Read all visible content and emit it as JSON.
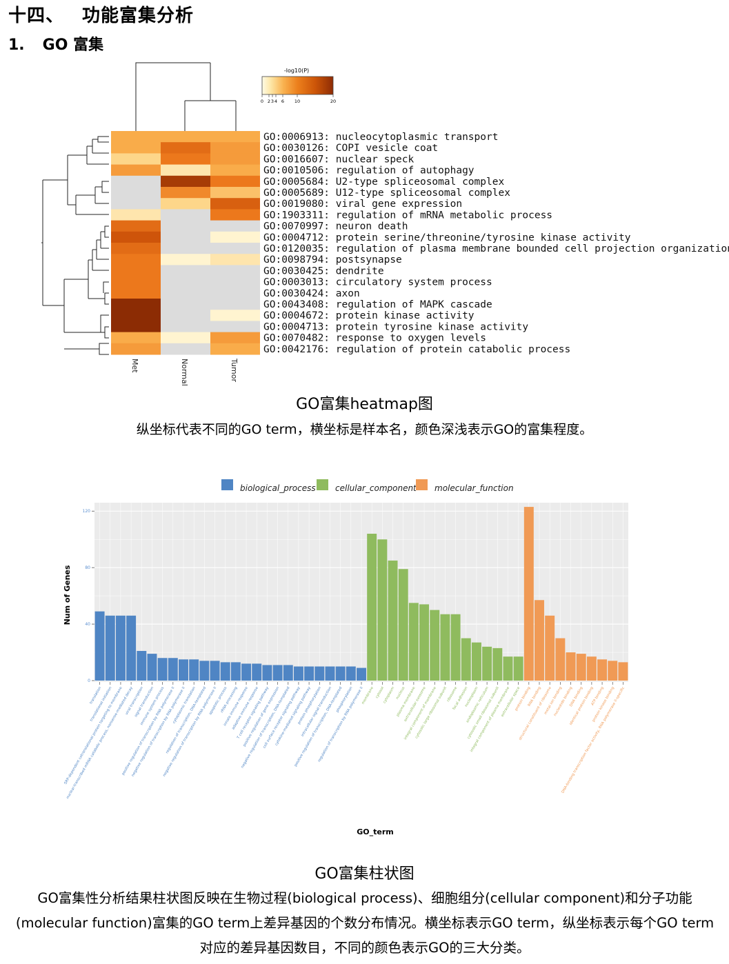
{
  "section": {
    "number": "十四、",
    "title": "功能富集分析"
  },
  "subsection": {
    "number": "1.",
    "title": "GO 富集"
  },
  "heatmap": {
    "legend_title": "-log10(P)",
    "legend_ticks": [
      "0",
      "2",
      "3",
      "4",
      "6",
      "10",
      "20"
    ],
    "samples": [
      "Met",
      "Normal",
      "Tumor"
    ],
    "terms": [
      "GO:0006913: nucleocytoplasmic transport",
      "GO:0030126: COPI vesicle coat",
      "GO:0016607: nuclear speck",
      "GO:0010506: regulation of autophagy",
      "GO:0005684: U2-type spliceosomal complex",
      "GO:0005689: U12-type spliceosomal complex",
      "GO:0019080: viral gene expression",
      "GO:1903311: regulation of mRNA metabolic process",
      "GO:0070997: neuron death",
      "GO:0004712: protein serine/threonine/tyrosine kinase activity",
      "GO:0120035: regulation of plasma membrane bounded cell projection organization",
      "GO:0098794: postsynapse",
      "GO:0030425: dendrite",
      "GO:0003013: circulatory system process",
      "GO:0030424: axon",
      "GO:0043408: regulation of MAPK cascade",
      "GO:0004672: protein kinase activity",
      "GO:0004713: protein tyrosine kinase activity",
      "GO:0070482: response to oxygen levels",
      "GO:0042176: regulation of protein catabolic process"
    ],
    "values": [
      [
        5,
        5,
        5
      ],
      [
        5,
        9,
        6
      ],
      [
        3,
        8,
        6
      ],
      [
        6,
        2,
        5
      ],
      [
        0,
        14,
        8
      ],
      [
        0,
        7,
        4
      ],
      [
        0,
        3,
        10
      ],
      [
        2,
        0,
        8
      ],
      [
        9,
        0,
        0
      ],
      [
        11,
        0,
        1
      ],
      [
        9,
        0,
        0
      ],
      [
        8,
        1,
        2
      ],
      [
        8,
        0,
        0
      ],
      [
        8,
        0,
        0
      ],
      [
        8,
        0,
        0
      ],
      [
        16,
        0,
        0
      ],
      [
        16,
        0,
        1
      ],
      [
        16,
        0,
        0
      ],
      [
        5,
        1,
        6
      ],
      [
        6,
        0,
        5
      ]
    ],
    "caption": "GO富集heatmap图",
    "description": "纵坐标代表不同的GO term，横坐标是样本名，颜色深浅表示GO的富集程度。"
  },
  "chart_data": {
    "type": "bar",
    "title": "",
    "xlabel": "GO_term",
    "ylabel": "Num of Genes",
    "ylim": [
      0,
      125
    ],
    "yticks": [
      0,
      40,
      80,
      120
    ],
    "colors": {
      "biological_process": "#4f85c4",
      "cellular_component": "#8fbb5e",
      "molecular_function": "#f09a55"
    },
    "series": [
      {
        "name": "biological_process",
        "categories": [
          "translation",
          "translational initiation",
          "SRP-dependent cotranslational protein targeting to membrane",
          "nuclear-transcribed mRNA catabolic process, nonsense-mediated decay",
          "viral transcription",
          "signal transduction",
          "immune system process",
          "positive regulation of transcription by RNA polymerase II",
          "negative regulation of transcription by RNA polymerase II",
          "cytoplasmic translation",
          "regulation of transcription, DNA-templated",
          "negative regulation of transcription by RNA polymerase II",
          "apoptotic process",
          "rRNA processing",
          "innate immune response",
          "adaptive immune response",
          "T cell receptor signaling pathway",
          "positive regulation of gene expression",
          "negative regulation of transcription, DNA-templated",
          "cell surface receptor signaling pathway",
          "cytokine-mediated signaling pathway",
          "protein phosphorylation",
          "intracellular signal transduction",
          "positive regulation of transcription, DNA-templated",
          "phosphorylation",
          "regulation of transcription by RNA polymerase II"
        ],
        "values": [
          49,
          46,
          46,
          46,
          21,
          19,
          16,
          16,
          15,
          15,
          14,
          14,
          13,
          13,
          12,
          12,
          11,
          11,
          11,
          10,
          10,
          10,
          10,
          10,
          10,
          9
        ]
      },
      {
        "name": "cellular_component",
        "categories": [
          "membrane",
          "cytosol",
          "cytoplasm",
          "nucleus",
          "plasma membrane",
          "extracellular exosome",
          "integral component of membrane",
          "cytosolic large ribosomal subunit",
          "ribosome",
          "focal adhesion",
          "nucleoplasm",
          "endoplasmic reticulum",
          "cytosolic small ribosomal subunit",
          "integral component of plasma membrane",
          "extracellular space"
        ],
        "values": [
          104,
          100,
          85,
          79,
          55,
          54,
          50,
          47,
          47,
          30,
          27,
          24,
          23,
          17,
          17
        ]
      },
      {
        "name": "molecular_function",
        "categories": [
          "protein binding",
          "RNA binding",
          "structural constituent of ribosome",
          "metal ion binding",
          "nucleotide binding",
          "DNA binding",
          "identical protein binding",
          "ATP binding",
          "protein kinase binding",
          "DNA-binding transcription factor activity, RNA polymerase II-specific"
        ],
        "values": [
          123,
          57,
          46,
          30,
          20,
          19,
          17,
          15,
          14,
          13
        ]
      }
    ]
  },
  "bar_chart": {
    "caption": "GO富集柱状图",
    "paragraph": "GO富集性分析结果柱状图反映在生物过程(biological process)、细胞组分(cellular component)和分子功能(molecular function)富集的GO term上差异基因的个数分布情况。横坐标表示GO term，纵坐标表示每个GO term对应的差异基因数目，不同的颜色表示GO的三大分类。"
  }
}
